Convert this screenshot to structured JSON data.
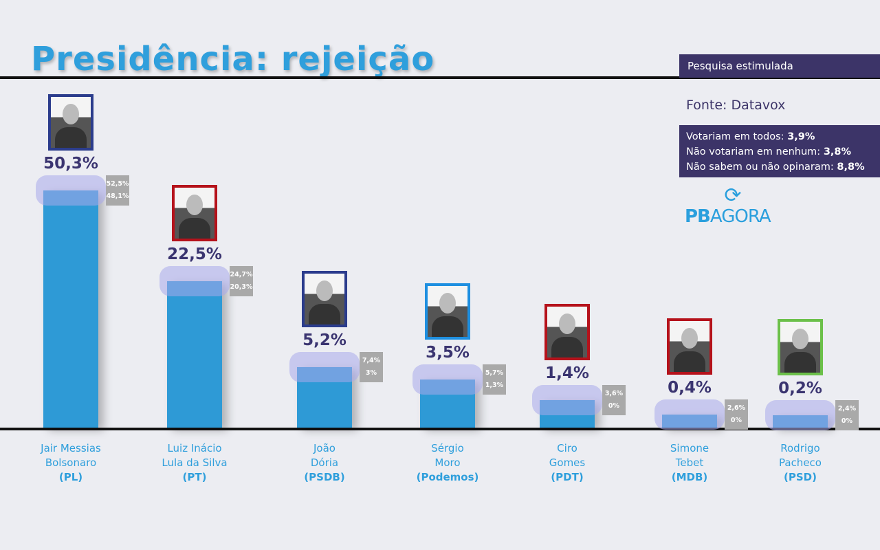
{
  "title": "Presidência: rejeição",
  "tag": "Pesquisa estimulada",
  "source": "Fonte: Datavox",
  "info": [
    {
      "label": "Votariam em todos: ",
      "value": "3,9%"
    },
    {
      "label": "Não votariam em nenhum: ",
      "value": "3,8%"
    },
    {
      "label": "Não sabem ou não opinaram: ",
      "value": "8,8%"
    }
  ],
  "logo": {
    "bold": "PB",
    "rest": "AGORA",
    "icon": "refresh-arrows-icon"
  },
  "colors": {
    "bar": "#2e9ad6",
    "accent": "#3c3468",
    "title": "#2f9fdc"
  },
  "chart_data": {
    "type": "bar",
    "title": "Presidência: rejeição",
    "categories": [
      "Jair Messias Bolsonaro (PL)",
      "Luiz Inácio Lula da Silva (PT)",
      "João Dória (PSDB)",
      "Sérgio Moro (Podemos)",
      "Ciro Gomes (PDT)",
      "Simone Tebet (MDB)",
      "Rodrigo Pacheco (PSD)"
    ],
    "values": [
      50.3,
      22.5,
      5.2,
      3.5,
      1.4,
      0.4,
      0.2
    ],
    "candidates": [
      {
        "name1": "Jair Messias",
        "name2": "Bolsonaro",
        "party": "(PL)",
        "value": 50.3,
        "label": "50,3%",
        "max": "52,5%",
        "min": "48,1%",
        "frame": "#2b3c8c"
      },
      {
        "name1": "Luiz Inácio",
        "name2": "Lula da Silva",
        "party": "(PT)",
        "value": 22.5,
        "label": "22,5%",
        "max": "24,7%",
        "min": "20,3%",
        "frame": "#b5121b"
      },
      {
        "name1": "João",
        "name2": "Dória",
        "party": "(PSDB)",
        "value": 5.2,
        "label": "5,2%",
        "max": "7,4%",
        "min": "3%",
        "frame": "#2b3c8c"
      },
      {
        "name1": "Sérgio",
        "name2": "Moro",
        "party": "(Podemos)",
        "value": 3.5,
        "label": "3,5%",
        "max": "5,7%",
        "min": "1,3%",
        "frame": "#1e8fe0"
      },
      {
        "name1": "Ciro",
        "name2": "Gomes",
        "party": "(PDT)",
        "value": 1.4,
        "label": "1,4%",
        "max": "3,6%",
        "min": "0%",
        "frame": "#b5121b"
      },
      {
        "name1": "Simone",
        "name2": "Tebet",
        "party": "(MDB)",
        "value": 0.4,
        "label": "0,4%",
        "max": "2,6%",
        "min": "0%",
        "frame": "#b5121b"
      },
      {
        "name1": "Rodrigo",
        "name2": "Pacheco",
        "party": "(PSD)",
        "value": 0.2,
        "label": "0,2%",
        "max": "2,4%",
        "min": "0%",
        "frame": "#6cc04a"
      }
    ]
  }
}
